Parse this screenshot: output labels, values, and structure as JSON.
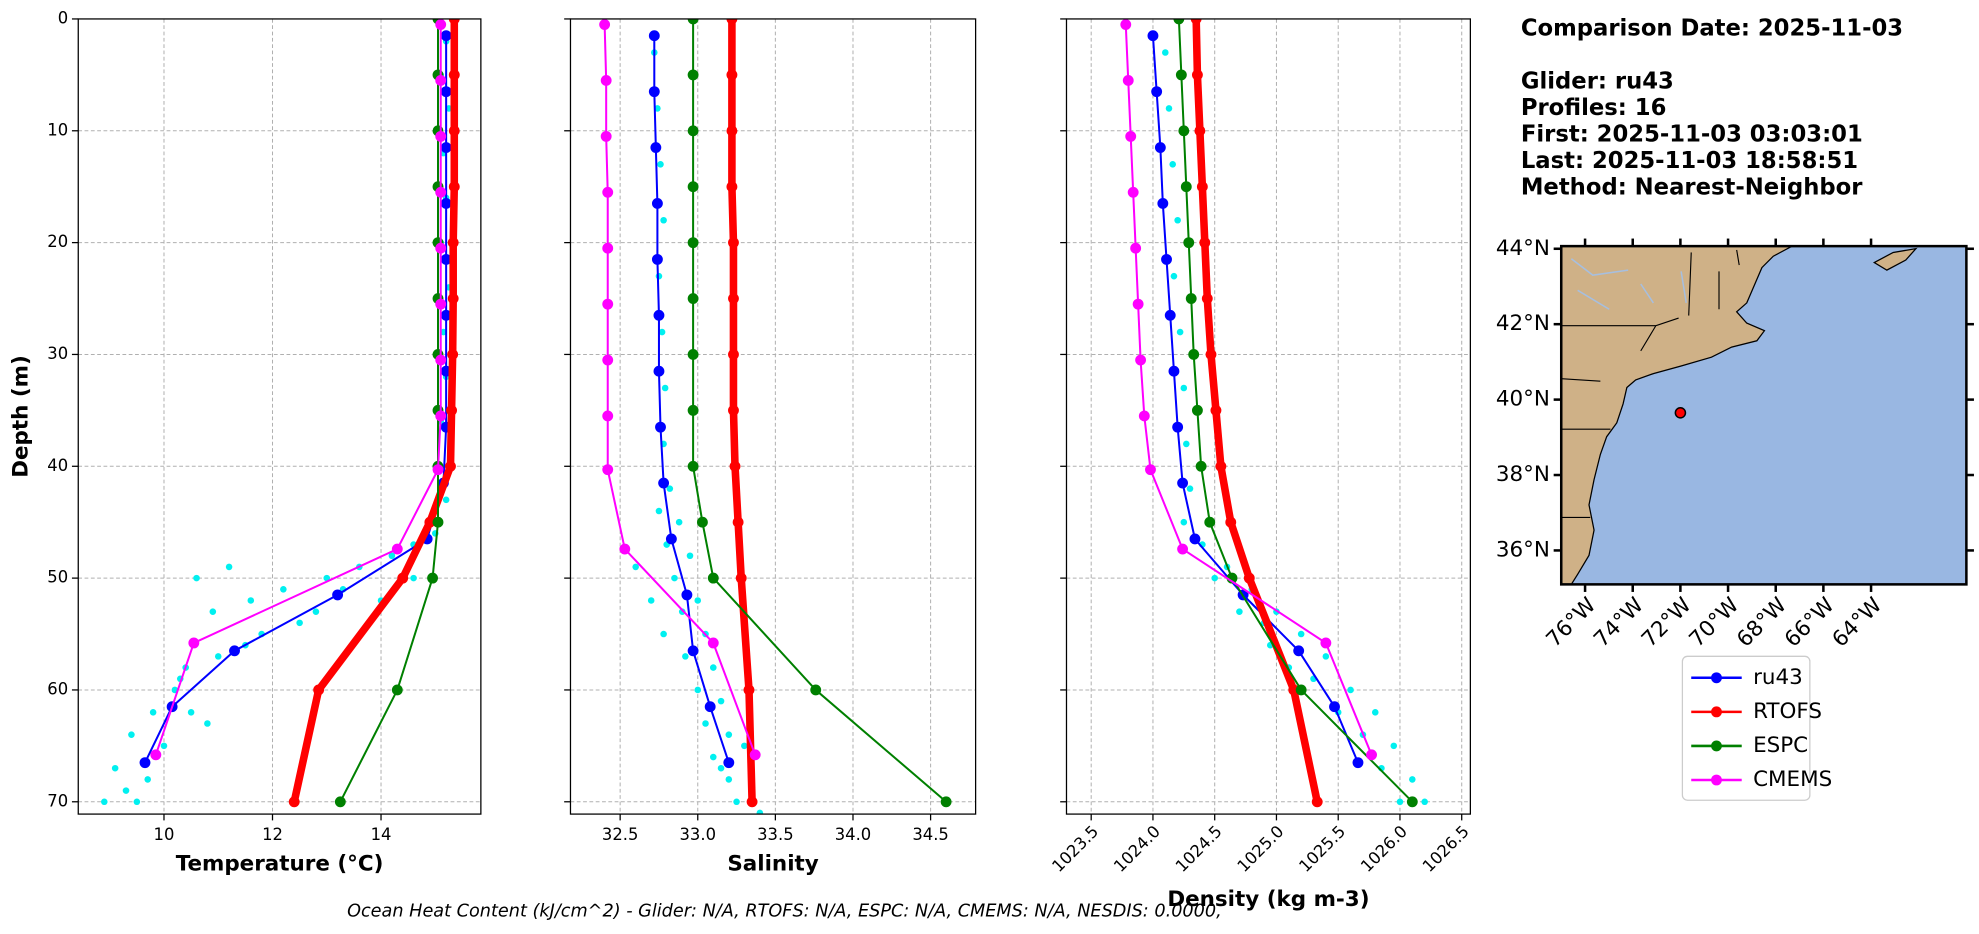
{
  "chart_data": [
    {
      "type": "line",
      "xlabel": "Temperature (°C)",
      "ylabel": "Depth (m)",
      "xlim": [
        8.42,
        15.84
      ],
      "ylim": [
        71.1,
        0
      ],
      "xticks": [
        10,
        12,
        14
      ],
      "yticks": [
        0,
        10,
        20,
        30,
        40,
        50,
        60,
        70
      ],
      "grid": true,
      "series": [
        {
          "color": "#00f0f0",
          "marker": "dot",
          "x": [
            15.2,
            15.1,
            15.25,
            15.15,
            15.2,
            15.1,
            15.25,
            15.15,
            15.2,
            15.1,
            15.25,
            15.2,
            15.0,
            14.6,
            14.2,
            13.6,
            13.0,
            12.2,
            11.6,
            10.9,
            10.6,
            11.2,
            12.8,
            14.0,
            11.8,
            11.0,
            10.4,
            10.2,
            9.8,
            10.5,
            9.4,
            10.0,
            9.1,
            9.7,
            8.9,
            9.5,
            10.3,
            11.5,
            12.5,
            13.3,
            14.6,
            10.8,
            9.3
          ],
          "y": [
            2,
            5,
            8,
            12,
            16,
            20,
            24,
            28,
            32,
            36,
            40,
            43,
            46,
            47,
            48,
            49,
            50,
            51,
            52,
            53,
            50,
            49,
            53,
            52,
            55,
            57,
            58,
            60,
            62,
            62,
            64,
            65,
            67,
            68,
            70,
            70,
            59,
            56,
            54,
            51,
            50,
            63,
            69
          ]
        },
        {
          "name": "ru43",
          "color": "#0000ff",
          "linewidth": 1.6,
          "x": [
            15.2,
            15.2,
            15.2,
            15.2,
            15.2,
            15.2,
            15.2,
            15.2,
            15.15,
            14.85,
            13.2,
            11.3,
            10.15,
            9.65
          ],
          "y": [
            1.5,
            6.5,
            11.5,
            16.5,
            21.5,
            26.5,
            31.5,
            36.5,
            41.5,
            46.5,
            51.5,
            56.5,
            61.5,
            66.5
          ]
        },
        {
          "name": "RTOFS",
          "color": "#ff0000",
          "linewidth": 6,
          "x": [
            15.35,
            15.35,
            15.35,
            15.35,
            15.33,
            15.33,
            15.32,
            15.3,
            15.28,
            14.9,
            14.4,
            12.85,
            12.4
          ],
          "y": [
            0,
            5,
            10,
            15,
            20,
            25,
            30,
            35,
            40,
            45,
            50,
            60,
            70
          ]
        },
        {
          "name": "ESPC",
          "color": "#008000",
          "linewidth": 1.6,
          "x": [
            15.05,
            15.05,
            15.05,
            15.05,
            15.05,
            15.05,
            15.05,
            15.05,
            15.05,
            15.05,
            14.95,
            14.3,
            13.25
          ],
          "y": [
            0,
            5,
            10,
            15,
            20,
            25,
            30,
            35,
            40,
            45,
            50,
            60,
            70
          ]
        },
        {
          "name": "CMEMS",
          "color": "#ff00ff",
          "linewidth": 1.6,
          "x": [
            15.1,
            15.1,
            15.1,
            15.1,
            15.1,
            15.1,
            15.1,
            15.1,
            15.05,
            14.3,
            10.55,
            9.85
          ],
          "y": [
            0.5,
            5.5,
            10.5,
            15.5,
            20.5,
            25.5,
            30.5,
            35.5,
            40.3,
            47.4,
            55.8,
            65.8
          ]
        }
      ]
    },
    {
      "type": "line",
      "xlabel": "Salinity",
      "xlim": [
        32.18,
        34.79
      ],
      "ylim": [
        71.1,
        0
      ],
      "xticks": [
        32.5,
        {
          "value": 33,
          "label": "33.0"
        },
        33.5,
        {
          "value": 34,
          "label": "34.0"
        },
        34.5
      ],
      "grid": true,
      "series": [
        {
          "color": "#00f0f0",
          "marker": "dot",
          "x": [
            32.72,
            32.74,
            32.76,
            32.78,
            32.75,
            32.77,
            32.79,
            32.78,
            32.82,
            32.75,
            32.88,
            32.8,
            32.95,
            32.85,
            32.7,
            32.9,
            33.0,
            33.05,
            32.92,
            33.1,
            33.0,
            33.15,
            33.05,
            33.2,
            33.1,
            33.3,
            33.2,
            33.35,
            33.25,
            33.4,
            32.6,
            32.78,
            33.15
          ],
          "y": [
            3,
            8,
            13,
            18,
            23,
            28,
            33,
            38,
            42,
            44,
            45,
            47,
            48,
            50,
            52,
            53,
            52,
            55,
            57,
            58,
            60,
            61,
            63,
            64,
            66,
            65,
            68,
            69,
            70,
            71,
            49,
            55,
            67
          ]
        },
        {
          "name": "ru43",
          "color": "#0000ff",
          "linewidth": 1.6,
          "x": [
            32.72,
            32.72,
            32.73,
            32.74,
            32.74,
            32.75,
            32.75,
            32.76,
            32.78,
            32.83,
            32.93,
            32.97,
            33.08,
            33.2
          ],
          "y": [
            1.5,
            6.5,
            11.5,
            16.5,
            21.5,
            26.5,
            31.5,
            36.5,
            41.5,
            46.5,
            51.5,
            56.5,
            61.5,
            66.5
          ]
        },
        {
          "name": "RTOFS",
          "color": "#ff0000",
          "linewidth": 6,
          "x": [
            33.22,
            33.22,
            33.22,
            33.22,
            33.23,
            33.23,
            33.23,
            33.23,
            33.24,
            33.26,
            33.28,
            33.33,
            33.35
          ],
          "y": [
            0,
            5,
            10,
            15,
            20,
            25,
            30,
            35,
            40,
            45,
            50,
            60,
            70
          ]
        },
        {
          "name": "ESPC",
          "color": "#008000",
          "linewidth": 1.6,
          "x": [
            32.97,
            32.97,
            32.97,
            32.97,
            32.97,
            32.97,
            32.97,
            32.97,
            32.97,
            33.03,
            33.1,
            33.76,
            34.6
          ],
          "y": [
            0,
            5,
            10,
            15,
            20,
            25,
            30,
            35,
            40,
            45,
            50,
            60,
            70
          ]
        },
        {
          "name": "CMEMS",
          "color": "#ff00ff",
          "linewidth": 1.6,
          "x": [
            32.4,
            32.41,
            32.41,
            32.42,
            32.42,
            32.42,
            32.42,
            32.42,
            32.42,
            32.53,
            33.1,
            33.37
          ],
          "y": [
            0.5,
            5.5,
            10.5,
            15.5,
            20.5,
            25.5,
            30.5,
            35.5,
            40.3,
            47.4,
            55.8,
            65.8
          ]
        }
      ]
    },
    {
      "type": "line",
      "xlabel": "Density (kg m-3)",
      "xlim": [
        1023.3,
        1026.57
      ],
      "ylim": [
        71.1,
        0
      ],
      "xticks": [
        1023.5,
        {
          "value": 1024,
          "label": "1024.0"
        },
        1024.5,
        {
          "value": 1025,
          "label": "1025.0"
        },
        1025.5,
        {
          "value": 1026,
          "label": "1026.0"
        },
        1026.5
      ],
      "xtick_rotation": 45,
      "grid": true,
      "series": [
        {
          "color": "#00f0f0",
          "marker": "dot",
          "x": [
            1024.1,
            1024.13,
            1024.16,
            1024.2,
            1024.17,
            1024.22,
            1024.25,
            1024.27,
            1024.3,
            1024.25,
            1024.4,
            1024.6,
            1024.5,
            1024.8,
            1024.7,
            1025.0,
            1025.2,
            1024.95,
            1025.4,
            1025.3,
            1025.6,
            1025.5,
            1025.8,
            1025.7,
            1025.95,
            1025.85,
            1026.1,
            1026.0,
            1026.2,
            1024.9,
            1025.1
          ],
          "y": [
            3,
            8,
            13,
            18,
            23,
            28,
            33,
            38,
            42,
            45,
            47,
            49,
            50,
            51,
            53,
            53,
            55,
            56,
            57,
            59,
            60,
            62,
            62,
            64,
            65,
            67,
            68,
            70,
            70,
            54,
            58
          ]
        },
        {
          "name": "ru43",
          "color": "#0000ff",
          "linewidth": 1.6,
          "x": [
            1024.0,
            1024.03,
            1024.06,
            1024.08,
            1024.11,
            1024.14,
            1024.17,
            1024.2,
            1024.24,
            1024.34,
            1024.73,
            1025.18,
            1025.47,
            1025.66
          ],
          "y": [
            1.5,
            6.5,
            11.5,
            16.5,
            21.5,
            26.5,
            31.5,
            36.5,
            41.5,
            46.5,
            51.5,
            56.5,
            61.5,
            66.5
          ]
        },
        {
          "name": "RTOFS",
          "color": "#ff0000",
          "linewidth": 6,
          "x": [
            1024.35,
            1024.36,
            1024.38,
            1024.4,
            1024.42,
            1024.44,
            1024.47,
            1024.51,
            1024.55,
            1024.63,
            1024.78,
            1025.14,
            1025.33
          ],
          "y": [
            0,
            5,
            10,
            15,
            20,
            25,
            30,
            35,
            40,
            45,
            50,
            60,
            70
          ]
        },
        {
          "name": "ESPC",
          "color": "#008000",
          "linewidth": 1.6,
          "x": [
            1024.21,
            1024.23,
            1024.25,
            1024.27,
            1024.29,
            1024.31,
            1024.33,
            1024.36,
            1024.39,
            1024.46,
            1024.64,
            1025.2,
            1026.1
          ],
          "y": [
            0,
            5,
            10,
            15,
            20,
            25,
            30,
            35,
            40,
            45,
            50,
            60,
            70
          ]
        },
        {
          "name": "CMEMS",
          "color": "#ff00ff",
          "linewidth": 1.6,
          "x": [
            1023.78,
            1023.8,
            1023.82,
            1023.84,
            1023.86,
            1023.88,
            1023.9,
            1023.93,
            1023.98,
            1024.24,
            1025.4,
            1025.77
          ],
          "y": [
            0.5,
            5.5,
            10.5,
            15.5,
            20.5,
            25.5,
            30.5,
            35.5,
            40.3,
            47.4,
            55.8,
            65.8
          ]
        }
      ]
    }
  ],
  "map": {
    "type": "map",
    "xlim": [
      -77.0,
      -60.0
    ],
    "ylim": [
      35.1,
      44.07
    ],
    "xticks": [
      {
        "value": -76,
        "label": "76°W"
      },
      {
        "value": -74,
        "label": "74°W"
      },
      {
        "value": -72,
        "label": "72°W"
      },
      {
        "value": -70,
        "label": "70°W"
      },
      {
        "value": -68,
        "label": "68°W"
      },
      {
        "value": -66,
        "label": "66°W"
      },
      {
        "value": -64,
        "label": "64°W"
      }
    ],
    "yticks": [
      {
        "value": 36,
        "label": "36°N"
      },
      {
        "value": 38,
        "label": "38°N"
      },
      {
        "value": 40,
        "label": "40°N"
      },
      {
        "value": 42,
        "label": "42°N"
      },
      {
        "value": 44,
        "label": "44°N"
      }
    ],
    "marker": {
      "lon": -72.0,
      "lat": 39.65,
      "color": "#ff0000"
    }
  },
  "info": [
    "Comparison Date: 2025-11-03",
    "Glider: ru43",
    "Profiles: 16",
    "First: 2025-11-03 03:03:01",
    "Last: 2025-11-03 18:58:51",
    "Method: Nearest-Neighbor"
  ],
  "footer": "Ocean Heat Content (kJ/cm^2) - Glider: N/A,  RTOFS: N/A,  ESPC: N/A,  CMEMS: N/A,  NESDIS: 0.0000,"
}
